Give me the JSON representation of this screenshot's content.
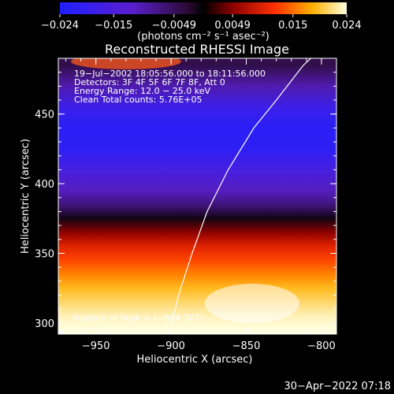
{
  "chart_data": {
    "type": "heatmap",
    "title": "Reconstructed RHESSI Image",
    "xlabel": "Heliocentric X (arcsec)",
    "ylabel": "Heliocentric Y (arcsec)",
    "xlim": [
      -975,
      -790
    ],
    "ylim": [
      292,
      490
    ],
    "x_ticks": [
      {
        "value": -950,
        "label": "−950"
      },
      {
        "value": -900,
        "label": "−900"
      },
      {
        "value": -850,
        "label": "−850"
      },
      {
        "value": -800,
        "label": "−800"
      }
    ],
    "y_ticks": [
      {
        "value": 300,
        "label": "300"
      },
      {
        "value": 350,
        "label": "350"
      },
      {
        "value": 400,
        "label": "400"
      },
      {
        "value": 450,
        "label": "450"
      }
    ],
    "colorbar": {
      "min": -0.024,
      "max": 0.024,
      "label": "(photons cm⁻² s⁻¹ asec⁻²)",
      "ticks": [
        {
          "value": -0.024,
          "label": "−0.024"
        },
        {
          "value": -0.015,
          "label": "−0.015"
        },
        {
          "value": -0.0049,
          "label": "−0.0049"
        },
        {
          "value": 0.0049,
          "label": "0.0049"
        },
        {
          "value": 0.015,
          "label": "0.015"
        },
        {
          "value": 0.024,
          "label": "0.024"
        }
      ]
    },
    "info_lines": [
      "19−Jul−2002 18:05:56.000 to 18:11:56.000",
      "Detectors: 3F 4F 5F 6F 7F 8F, Att 0",
      "Energy Range: 12.0 − 25.0 keV",
      "Clean    Total counts: 5.76E+05"
    ],
    "peak_label": "Position of Peak = (−884,307)",
    "limb_curve": {
      "x": [
        -901,
        -895,
        -886,
        -876,
        -862,
        -845,
        -830,
        -812,
        -805
      ],
      "y": [
        292,
        320,
        350,
        380,
        410,
        440,
        460,
        485,
        492
      ]
    },
    "image_rows": [
      {
        "y": 485,
        "value": -0.004
      },
      {
        "y": 470,
        "value": -0.01
      },
      {
        "y": 455,
        "value": -0.018
      },
      {
        "y": 440,
        "value": -0.022
      },
      {
        "y": 425,
        "value": -0.021
      },
      {
        "y": 410,
        "value": -0.016
      },
      {
        "y": 395,
        "value": -0.011
      },
      {
        "y": 385,
        "value": -0.007
      },
      {
        "y": 375,
        "value": -0.001
      },
      {
        "y": 365,
        "value": 0.005
      },
      {
        "y": 355,
        "value": 0.01
      },
      {
        "y": 345,
        "value": 0.013
      },
      {
        "y": 335,
        "value": 0.016
      },
      {
        "y": 325,
        "value": 0.019
      },
      {
        "y": 315,
        "value": 0.021
      },
      {
        "y": 305,
        "value": 0.023
      },
      {
        "y": 295,
        "value": 0.024
      }
    ]
  },
  "footer": {
    "timestamp": "30−Apr−2022 07:18"
  }
}
